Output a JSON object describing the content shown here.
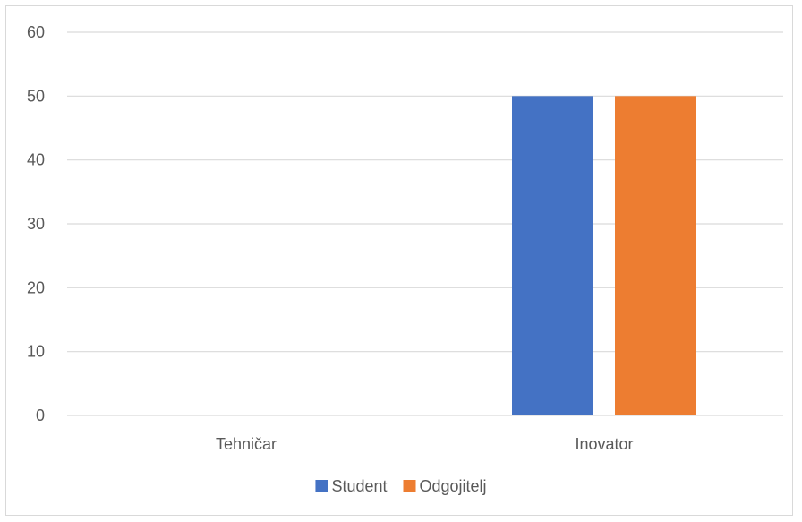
{
  "chart_data": {
    "type": "bar",
    "categories": [
      "Tehničar",
      "Inovator"
    ],
    "series": [
      {
        "name": "Student",
        "values": [
          0,
          50
        ],
        "color": "#4472c4"
      },
      {
        "name": "Odgojitelj",
        "values": [
          0,
          50
        ],
        "color": "#ed7d31"
      }
    ],
    "ylim": [
      0,
      60
    ],
    "yticks": [
      0,
      10,
      20,
      30,
      40,
      50,
      60
    ],
    "grid": true,
    "legend_position": "bottom",
    "gridline_color": "#d9d9d9"
  }
}
